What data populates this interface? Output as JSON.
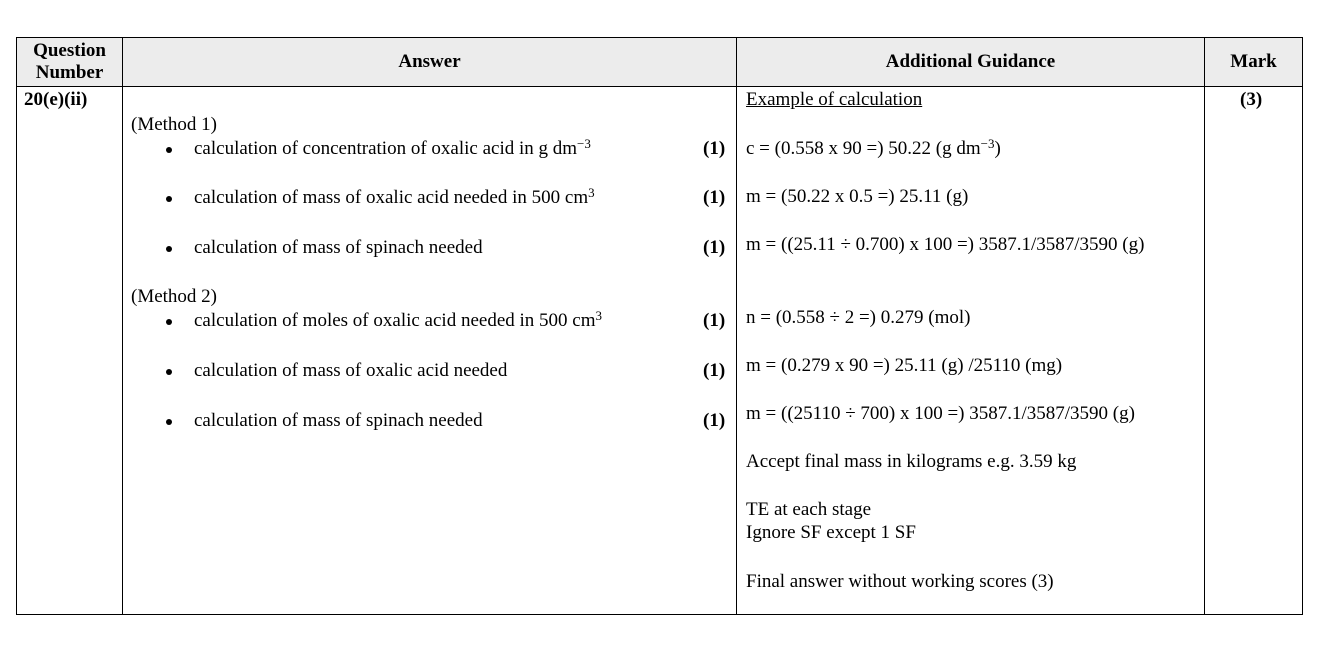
{
  "headers": {
    "question": "Question Number",
    "answer": "Answer",
    "guidance": "Additional Guidance",
    "mark": "Mark"
  },
  "question_number": "20(e)(ii)",
  "mark": "(3)",
  "methods": [
    {
      "label": "(Method 1)",
      "items": [
        {
          "text": "calculation of concentration of oxalic acid in g dm",
          "sup": "−3",
          "mark": "(1)"
        },
        {
          "text": "calculation of mass of oxalic acid needed in 500 cm",
          "sup": "3",
          "mark": "(1)"
        },
        {
          "text": "calculation of mass of spinach needed",
          "sup": "",
          "mark": "(1)"
        }
      ]
    },
    {
      "label": "(Method 2)",
      "items": [
        {
          "text": "calculation of moles of oxalic acid needed in 500 cm",
          "sup": "3",
          "mark": "(1)"
        },
        {
          "text": "calculation of mass of oxalic acid needed",
          "sup": "",
          "mark": "(1)"
        },
        {
          "text": "calculation of mass of spinach needed",
          "sup": "",
          "mark": "(1)"
        }
      ]
    }
  ],
  "guidance": {
    "heading": "Example of calculation",
    "g1a": "c = (0.558 x 90 =) 50.22 (g dm",
    "g1sup": "−3",
    "g1b": ")",
    "g2": "m = (50.22 x 0.5 =) 25.11 (g)",
    "g3": "m = ((25.11 ÷ 0.700) x 100 =) 3587.1/3587/3590 (g)",
    "g4": "n = (0.558 ÷ 2 =) 0.279 (mol)",
    "g5": "m = (0.279 x 90 =) 25.11 (g) /25110 (mg)",
    "g6": "m = ((25110 ÷ 700) x 100 =) 3587.1/3587/3590 (g)",
    "g7": "Accept final mass in kilograms e.g. 3.59 kg",
    "g8": "TE at each stage",
    "g9": "Ignore SF except 1 SF",
    "g10": "Final answer without working scores (3)"
  }
}
